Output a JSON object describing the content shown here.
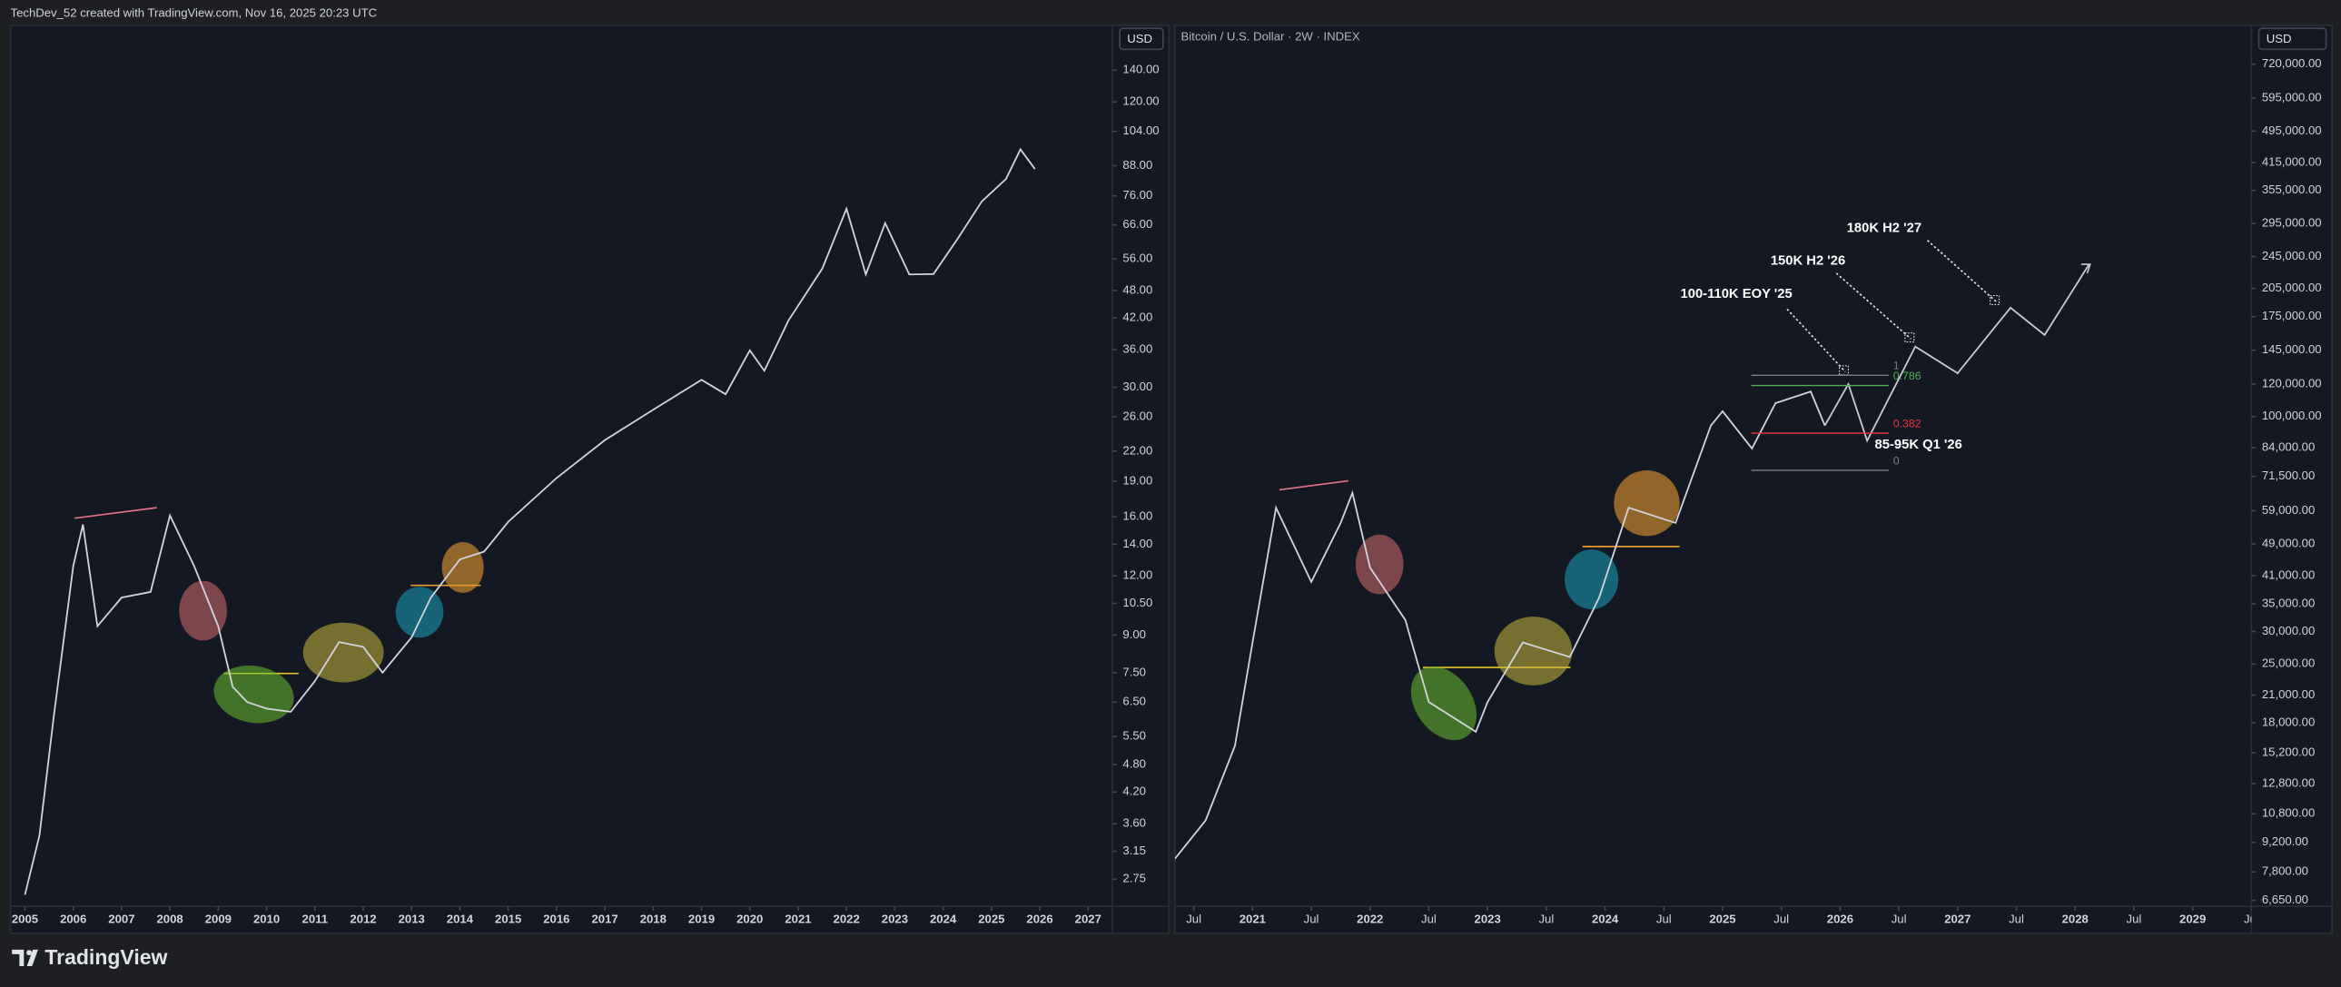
{
  "header": "TechDev_52 created with TradingView.com, Nov 16, 2025 20:23 UTC",
  "footer": "TradingView",
  "chart_data": [
    {
      "type": "line",
      "log_scale": true,
      "grid": false,
      "color": "#d1d4dc",
      "axis_unit": "USD",
      "x": [
        2005.0,
        2005.3,
        2005.6,
        2006.0,
        2006.2,
        2006.5,
        2007.0,
        2007.6,
        2008.0,
        2008.5,
        2009.0,
        2009.3,
        2009.6,
        2010.0,
        2010.5,
        2011.0,
        2011.5,
        2012.0,
        2012.4,
        2013.0,
        2013.4,
        2014.0,
        2014.5,
        2015.0,
        2016.0,
        2017.0,
        2018.0,
        2019.0,
        2019.5,
        2020.0,
        2020.3,
        2020.8,
        2021.5,
        2022.0,
        2022.4,
        2022.8,
        2023.3,
        2023.8,
        2024.3,
        2024.8,
        2025.3,
        2025.6,
        2025.9
      ],
      "values": [
        2.55,
        3.4,
        6.1,
        12.6,
        15.4,
        9.4,
        10.8,
        11.1,
        16.1,
        12.6,
        9.4,
        7.0,
        6.5,
        6.3,
        6.2,
        7.2,
        8.7,
        8.5,
        7.5,
        8.9,
        10.8,
        13.0,
        13.5,
        15.6,
        19.3,
        23.2,
        26.9,
        31.1,
        29.0,
        35.9,
        32.5,
        41.5,
        53.4,
        71.4,
        51.9,
        66.6,
        51.9,
        52.0,
        61.7,
        74.0,
        82.5,
        95.3,
        86.6
      ],
      "xlim": [
        2004.7,
        2027.5
      ],
      "xticks": [
        2005,
        2006,
        2007,
        2008,
        2009,
        2010,
        2011,
        2012,
        2013,
        2014,
        2015,
        2016,
        2017,
        2018,
        2019,
        2020,
        2021,
        2022,
        2023,
        2024,
        2025,
        2026,
        2027
      ],
      "ylim": [
        2.41,
        174
      ],
      "yticks": [
        2.75,
        3.15,
        {
          "value": 3.6,
          "label": "3.60"
        },
        {
          "value": 4.2,
          "label": "4.20"
        },
        {
          "value": 4.8,
          "label": "4.80"
        },
        {
          "value": 5.5,
          "label": "5.50"
        },
        {
          "value": 6.5,
          "label": "6.50"
        },
        {
          "value": 7.5,
          "label": "7.50"
        },
        {
          "value": 9,
          "label": "9.00"
        },
        {
          "value": 10.5,
          "label": "10.50"
        },
        {
          "value": 12,
          "label": "12.00"
        },
        {
          "value": 14,
          "label": "14.00"
        },
        {
          "value": 16,
          "label": "16.00"
        },
        {
          "value": 19,
          "label": "19.00"
        },
        {
          "value": 22,
          "label": "22.00"
        },
        {
          "value": 26,
          "label": "26.00"
        },
        {
          "value": 30,
          "label": "30.00"
        },
        {
          "value": 36,
          "label": "36.00"
        },
        {
          "value": 42,
          "label": "42.00"
        },
        {
          "value": 48,
          "label": "48.00"
        },
        {
          "value": 56,
          "label": "56.00"
        },
        {
          "value": 66,
          "label": "66.00"
        },
        {
          "value": 76,
          "label": "76.00"
        },
        {
          "value": 88,
          "label": "88.00"
        },
        {
          "value": 104,
          "label": "104.00"
        },
        {
          "value": 120,
          "label": "120.00"
        },
        {
          "value": 140,
          "label": "140.00"
        }
      ]
    },
    {
      "type": "line",
      "log_scale": true,
      "grid": false,
      "color": "#d1d4dc",
      "axis_unit": "USD",
      "title": "Bitcoin / U.S. Dollar · 2W · INDEX",
      "x": [
        2020.34,
        2020.6,
        2020.85,
        2021.0,
        2021.2,
        2021.5,
        2021.75,
        2021.85,
        2022.0,
        2022.3,
        2022.5,
        2022.9,
        2023.0,
        2023.3,
        2023.7,
        2023.95,
        2024.2,
        2024.6,
        2024.9,
        2025.0,
        2025.25,
        2025.45,
        2025.75,
        2025.87
      ],
      "values": [
        8400,
        10400,
        15800,
        28200,
        60000,
        39600,
        55100,
        65200,
        42900,
        32000,
        20200,
        17100,
        20200,
        28200,
        26000,
        36300,
        60000,
        55100,
        95100,
        103000,
        83600,
        107800,
        115000,
        95100
      ],
      "projection": {
        "x": [
          2025.87,
          2026.07,
          2026.23,
          2026.64,
          2027.0,
          2027.45,
          2027.74,
          2028.12
        ],
        "values": [
          95100,
          120000,
          87300,
          148000,
          127500,
          184000,
          158000,
          235000
        ],
        "color": "#c8cad0"
      },
      "fib_levels": [
        1,
        0.786,
        0.382,
        0
      ],
      "fib_prices": [
        126000,
        119000,
        91100,
        74000
      ],
      "fib_colors": [
        "#787b86",
        "#4caf50",
        "#f23645",
        "#787b86"
      ],
      "annotations": [
        "100-110K EOY '25",
        "150K H2 '26",
        "180K H2 '27",
        "85-95K Q1 '26"
      ],
      "xlim": [
        2020.34,
        2029.5
      ],
      "xticks": [
        {
          "value": 2020.5,
          "label": "Jul"
        },
        2021,
        {
          "value": 2021.5,
          "label": "Jul"
        },
        2022,
        {
          "value": 2022.5,
          "label": "Jul"
        },
        2023,
        {
          "value": 2023.5,
          "label": "Jul"
        },
        2024,
        {
          "value": 2024.5,
          "label": "Jul"
        },
        2025,
        {
          "value": 2025.5,
          "label": "Jul"
        },
        2026,
        {
          "value": 2026.5,
          "label": "Jul"
        },
        2027,
        {
          "value": 2027.5,
          "label": "Jul"
        },
        2028,
        {
          "value": 2028.5,
          "label": "Jul"
        },
        2029,
        {
          "value": 2029.5,
          "label": "Jul"
        }
      ],
      "ylim": [
        6430,
        895000
      ],
      "yticks": [
        {
          "value": 6650,
          "label": "6,650.00"
        },
        {
          "value": 7800,
          "label": "7,800.00"
        },
        {
          "value": 9200,
          "label": "9,200.00"
        },
        {
          "value": 10800,
          "label": "10,800.00"
        },
        {
          "value": 12800,
          "label": "12,800.00"
        },
        {
          "value": 15200,
          "label": "15,200.00"
        },
        {
          "value": 18000,
          "label": "18,000.00"
        },
        {
          "value": 21000,
          "label": "21,000.00"
        },
        {
          "value": 25000,
          "label": "25,000.00"
        },
        {
          "value": 30000,
          "label": "30,000.00"
        },
        {
          "value": 35000,
          "label": "35,000.00"
        },
        {
          "value": 41000,
          "label": "41,000.00"
        },
        {
          "value": 49000,
          "label": "49,000.00"
        },
        {
          "value": 59000,
          "label": "59,000.00"
        },
        {
          "value": 71500,
          "label": "71,500.00"
        },
        {
          "value": 84000,
          "label": "84,000.00"
        },
        {
          "value": 100000,
          "label": "100,000.00"
        },
        {
          "value": 120000,
          "label": "120,000.00"
        },
        {
          "value": 145000,
          "label": "145,000.00"
        },
        {
          "value": 175000,
          "label": "175,000.00"
        },
        {
          "value": 205000,
          "label": "205,000.00"
        },
        {
          "value": 245000,
          "label": "245,000.00"
        },
        {
          "value": 295000,
          "label": "295,000.00"
        },
        {
          "value": 355000,
          "label": "355,000.00"
        },
        {
          "value": 415000,
          "label": "415,000.00"
        },
        {
          "value": 495000,
          "label": "495,000.00"
        },
        {
          "value": 595000,
          "label": "595,000.00"
        },
        {
          "value": 720000,
          "label": "720,000.00"
        }
      ]
    }
  ]
}
